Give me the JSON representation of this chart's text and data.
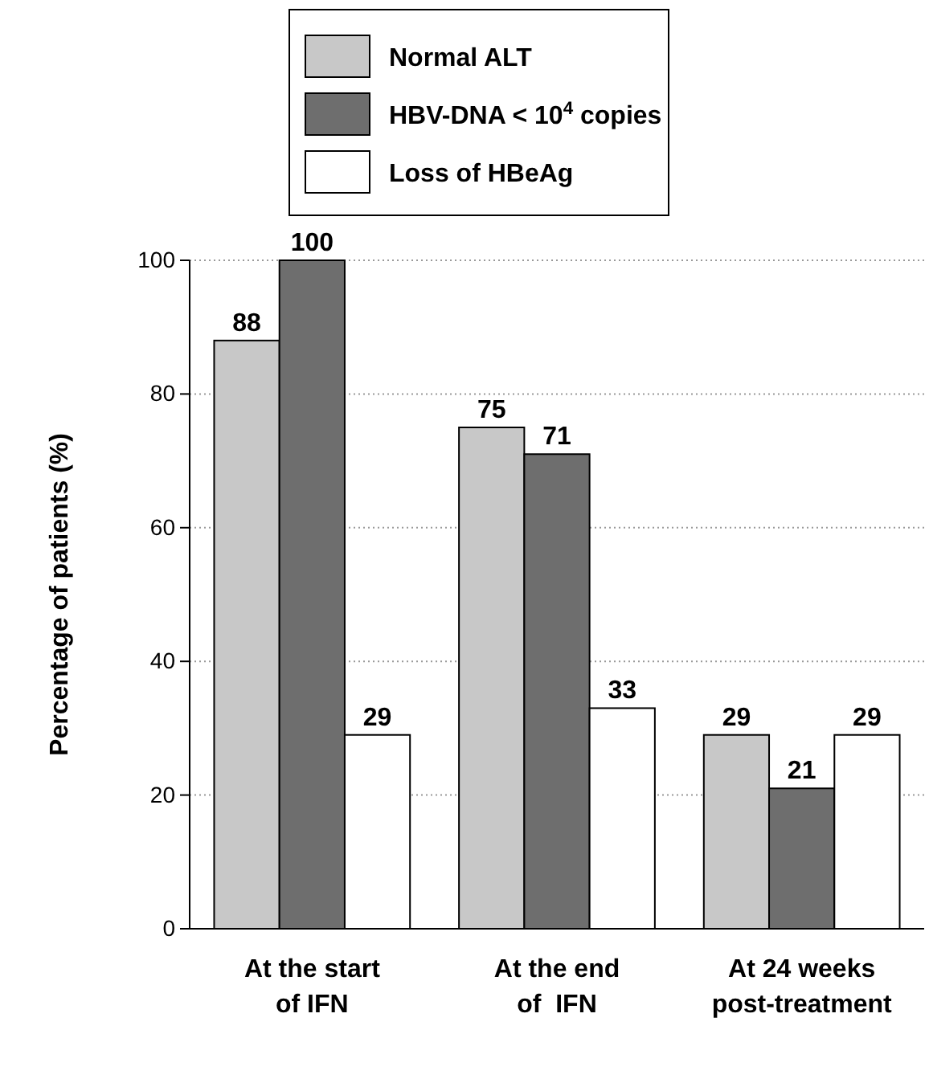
{
  "chart_data": {
    "type": "bar",
    "ylabel": "Percentage of patients (%)",
    "categories": [
      "At the start\nof IFN",
      "At the end\nof  IFN",
      "At 24 weeks\npost-treatment"
    ],
    "series": [
      {
        "name": "Normal ALT",
        "color": "#c8c8c8",
        "values": [
          88,
          75,
          29
        ]
      },
      {
        "name": "HBV-DNA < 10$^{4}$ copies",
        "color": "#6e6e6e",
        "values": [
          100,
          71,
          21
        ]
      },
      {
        "name": "Loss of HBeAg",
        "color": "#ffffff",
        "values": [
          29,
          33,
          29
        ]
      }
    ],
    "ylim": [
      0,
      100
    ],
    "yticks": [
      0,
      20,
      40,
      60,
      80,
      100
    ],
    "grid": "y",
    "legend": "top",
    "data_labels": true
  }
}
